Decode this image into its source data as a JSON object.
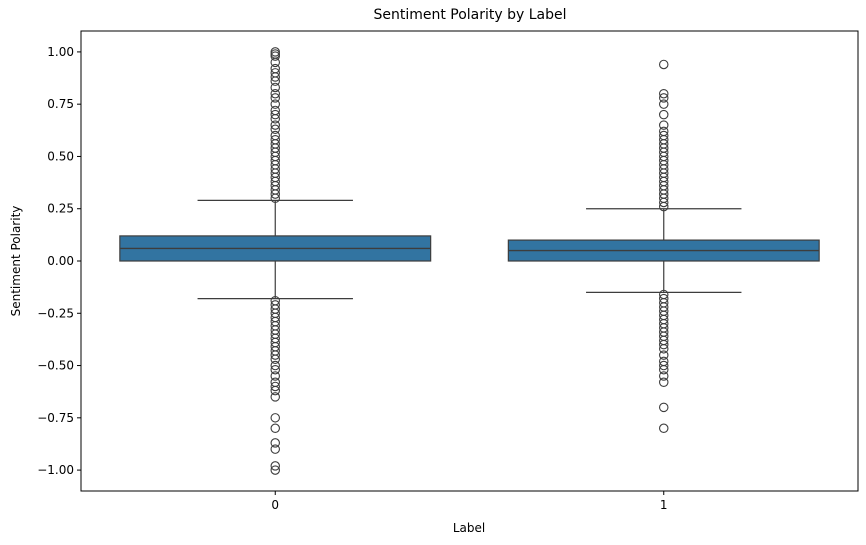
{
  "chart_data": {
    "type": "box",
    "title": "Sentiment Polarity by Label",
    "xlabel": "Label",
    "ylabel": "Sentiment Polarity",
    "categories": [
      "0",
      "1"
    ],
    "ylim": [
      -1.1,
      1.1
    ],
    "yticks": [
      -1.0,
      -0.75,
      -0.5,
      -0.25,
      0.0,
      0.25,
      0.5,
      0.75,
      1.0
    ],
    "ytick_labels": [
      "−1.00",
      "−0.75",
      "−0.50",
      "−0.25",
      "0.00",
      "0.25",
      "0.50",
      "0.75",
      "1.00"
    ],
    "grid": false,
    "box_color": "#3274a1",
    "edge_color": "#3d3d3d",
    "series": [
      {
        "category": "0",
        "q1": 0.0,
        "median": 0.06,
        "q3": 0.12,
        "whisker_low": -0.18,
        "whisker_high": 0.29,
        "outliers": [
          1.0,
          0.99,
          0.98,
          0.95,
          0.92,
          0.9,
          0.88,
          0.86,
          0.83,
          0.8,
          0.78,
          0.75,
          0.72,
          0.7,
          0.68,
          0.65,
          0.63,
          0.6,
          0.58,
          0.56,
          0.54,
          0.52,
          0.5,
          0.48,
          0.46,
          0.44,
          0.42,
          0.4,
          0.38,
          0.36,
          0.34,
          0.32,
          0.3,
          -0.19,
          -0.21,
          -0.23,
          -0.25,
          -0.27,
          -0.29,
          -0.31,
          -0.33,
          -0.35,
          -0.37,
          -0.39,
          -0.41,
          -0.43,
          -0.45,
          -0.47,
          -0.5,
          -0.52,
          -0.55,
          -0.58,
          -0.6,
          -0.62,
          -0.65,
          -0.75,
          -0.8,
          -0.87,
          -0.9,
          -0.98,
          -1.0
        ]
      },
      {
        "category": "1",
        "q1": 0.0,
        "median": 0.05,
        "q3": 0.1,
        "whisker_low": -0.15,
        "whisker_high": 0.25,
        "outliers": [
          0.94,
          0.8,
          0.78,
          0.75,
          0.7,
          0.65,
          0.62,
          0.6,
          0.58,
          0.56,
          0.54,
          0.52,
          0.5,
          0.48,
          0.46,
          0.44,
          0.42,
          0.4,
          0.38,
          0.36,
          0.34,
          0.32,
          0.3,
          0.28,
          0.26,
          -0.16,
          -0.18,
          -0.2,
          -0.22,
          -0.24,
          -0.26,
          -0.28,
          -0.3,
          -0.32,
          -0.34,
          -0.36,
          -0.38,
          -0.4,
          -0.42,
          -0.45,
          -0.48,
          -0.5,
          -0.52,
          -0.55,
          -0.58,
          -0.7,
          -0.8
        ]
      }
    ]
  }
}
